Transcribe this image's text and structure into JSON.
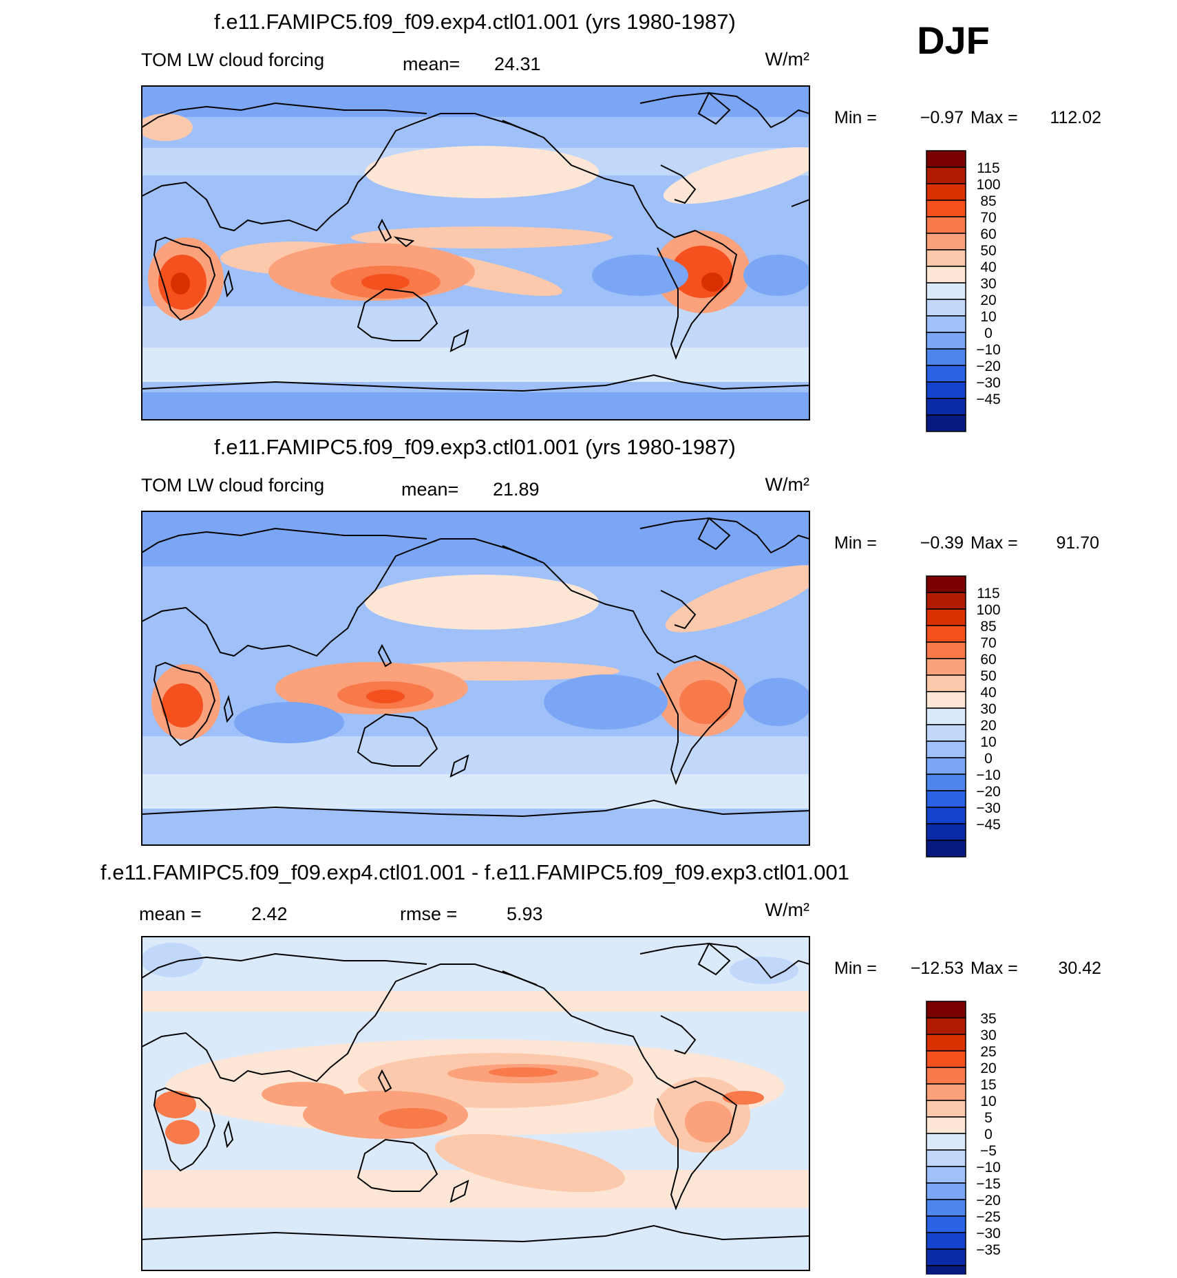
{
  "season": "DJF",
  "units": "W/m²",
  "panels": [
    {
      "title": "f.e11.FAMIPC5.f09_f09.exp4.ctl01.001 (yrs 1980-1987)",
      "variable": "TOM LW cloud forcing",
      "mean_label": "mean=",
      "mean_value": "24.31",
      "units": "W/m²",
      "min_label": "Min =",
      "min_value": "−0.97",
      "max_label": "Max =",
      "max_value": "112.02",
      "field_type": "absolute",
      "colorbar": {
        "labels": [
          "115",
          "100",
          "85",
          "70",
          "60",
          "50",
          "40",
          "30",
          "20",
          "10",
          "0",
          "−10",
          "−20",
          "−30",
          "−45"
        ],
        "colors": [
          "#7a0000",
          "#b01c00",
          "#d93000",
          "#f4511e",
          "#f8794a",
          "#fba27c",
          "#fdc9ac",
          "#fde6d5",
          "#dbeafb",
          "#c2d8fb",
          "#9fc0f8",
          "#7aa6f5",
          "#4f86ee",
          "#2a63e6",
          "#1542cc",
          "#0b2aa8",
          "#061a80"
        ]
      }
    },
    {
      "title": "f.e11.FAMIPC5.f09_f09.exp3.ctl01.001 (yrs 1980-1987)",
      "variable": "TOM LW cloud forcing",
      "mean_label": "mean=",
      "mean_value": "21.89",
      "units": "W/m²",
      "min_label": "Min =",
      "min_value": "−0.39",
      "max_label": "Max =",
      "max_value": "91.70",
      "field_type": "absolute",
      "colorbar": {
        "labels": [
          "115",
          "100",
          "85",
          "70",
          "60",
          "50",
          "40",
          "30",
          "20",
          "10",
          "0",
          "−10",
          "−20",
          "−30",
          "−45"
        ],
        "colors": [
          "#7a0000",
          "#b01c00",
          "#d93000",
          "#f4511e",
          "#f8794a",
          "#fba27c",
          "#fdc9ac",
          "#fde6d5",
          "#dbeafb",
          "#c2d8fb",
          "#9fc0f8",
          "#7aa6f5",
          "#4f86ee",
          "#2a63e6",
          "#1542cc",
          "#0b2aa8",
          "#061a80"
        ]
      }
    },
    {
      "title": "f.e11.FAMIPC5.f09_f09.exp4.ctl01.001 - f.e11.FAMIPC5.f09_f09.exp3.ctl01.001",
      "variable": "",
      "mean_label": "mean =",
      "mean_value": "2.42",
      "rmse_label": "rmse =",
      "rmse_value": "5.93",
      "units": "W/m²",
      "min_label": "Min =",
      "min_value": "−12.53",
      "max_label": "Max =",
      "max_value": "30.42",
      "field_type": "difference",
      "colorbar": {
        "labels": [
          "35",
          "30",
          "25",
          "20",
          "15",
          "10",
          "5",
          "0",
          "−5",
          "−10",
          "−15",
          "−20",
          "−25",
          "−30",
          "−35"
        ],
        "colors": [
          "#7a0000",
          "#b01c00",
          "#d93000",
          "#f4511e",
          "#f8794a",
          "#fba27c",
          "#fdc9ac",
          "#fde6d5",
          "#dbeafb",
          "#c2d8fb",
          "#9fc0f8",
          "#7aa6f5",
          "#4f86ee",
          "#2a63e6",
          "#1542cc",
          "#0b2aa8",
          "#061a80"
        ]
      }
    }
  ]
}
